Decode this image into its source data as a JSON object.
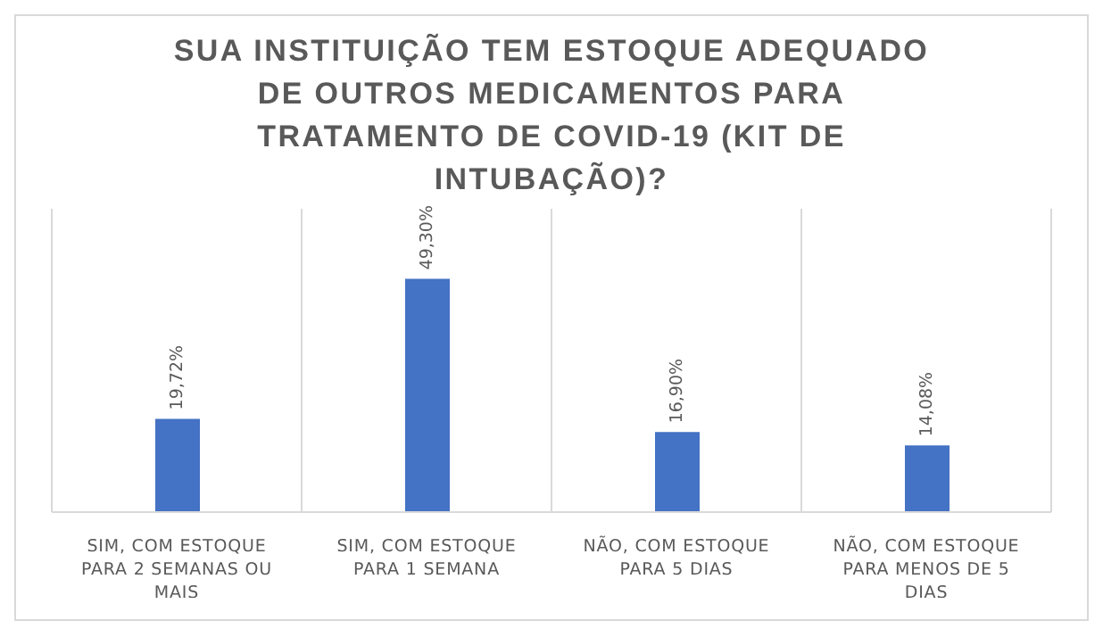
{
  "chart_data": {
    "type": "bar",
    "title": "SUA INSTITUIÇÃO TEM ESTOQUE ADEQUADO DE OUTROS MEDICAMENTOS PARA TRATAMENTO DE COVID-19 (KIT DE INTUBAÇÃO)?",
    "categories": [
      "SIM, COM ESTOQUE PARA 2 SEMANAS OU MAIS",
      "SIM, COM ESTOQUE PARA 1 SEMANA",
      "NÃO, COM ESTOQUE PARA 5 DIAS",
      "NÃO, COM ESTOQUE PARA MENOS DE 5 DIAS"
    ],
    "values": [
      19.72,
      49.3,
      16.9,
      14.08
    ],
    "value_labels": [
      "19,72%",
      "49,30%",
      "16,90%",
      "14,08%"
    ],
    "color": "#4472c4",
    "grid": "x"
  }
}
